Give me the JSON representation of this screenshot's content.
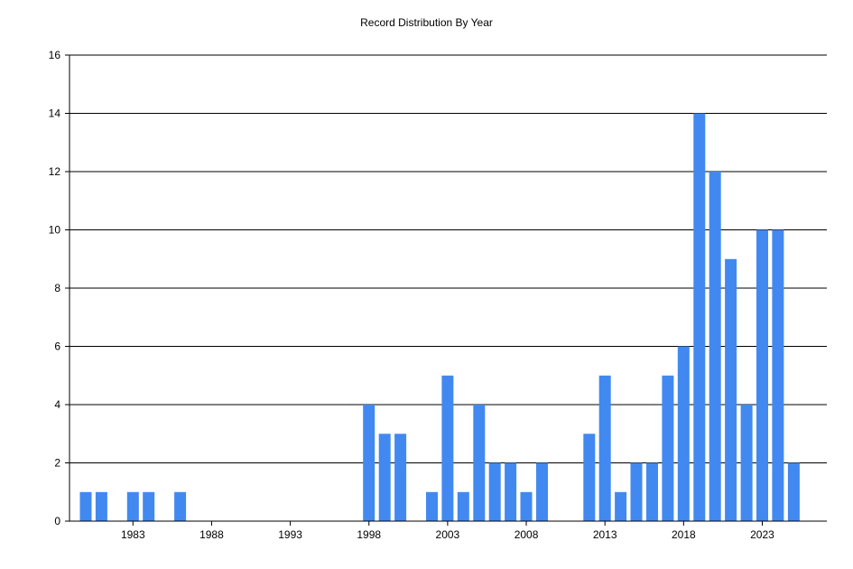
{
  "chart_data": {
    "type": "bar",
    "title": "Record Distribution By Year",
    "xlabel": "",
    "ylabel": "",
    "categories": [
      1980,
      1981,
      1982,
      1983,
      1984,
      1985,
      1986,
      1987,
      1988,
      1989,
      1990,
      1991,
      1992,
      1993,
      1994,
      1995,
      1996,
      1997,
      1998,
      1999,
      2000,
      2001,
      2002,
      2003,
      2004,
      2005,
      2006,
      2007,
      2008,
      2009,
      2010,
      2011,
      2012,
      2013,
      2014,
      2015,
      2016,
      2017,
      2018,
      2019,
      2020,
      2021,
      2022,
      2023,
      2024,
      2025
    ],
    "values": [
      1,
      1,
      0,
      1,
      1,
      0,
      1,
      0,
      0,
      0,
      0,
      0,
      0,
      0,
      0,
      0,
      0,
      0,
      4,
      3,
      3,
      0,
      1,
      5,
      1,
      4,
      2,
      2,
      1,
      2,
      0,
      0,
      3,
      5,
      1,
      2,
      2,
      5,
      6,
      14,
      12,
      9,
      4,
      10,
      10,
      2
    ],
    "x_ticks": [
      "1983",
      "1988",
      "1993",
      "1998",
      "2003",
      "2008",
      "2013",
      "2018",
      "2023"
    ],
    "y_ticks": [
      "0",
      "2",
      "4",
      "6",
      "8",
      "10",
      "12",
      "14",
      "16"
    ],
    "ylim": [
      0,
      16
    ],
    "grid": "horizontal",
    "bar_color": "#4189f0",
    "legend": "none"
  }
}
